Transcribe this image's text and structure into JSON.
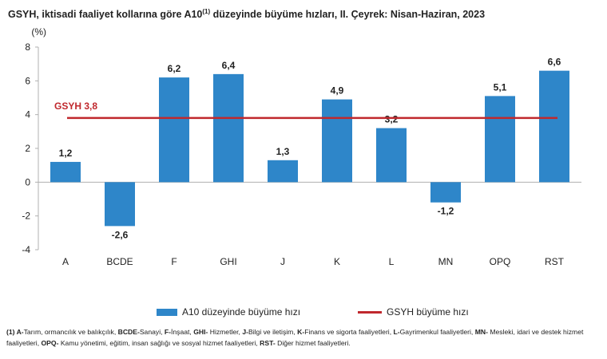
{
  "title": {
    "main": "GSYH, iktisadi faaliyet kollarına göre A10",
    "superscript": "(1)",
    "rest": " düzeyinde büyüme hızları, II. Çeyrek: Nisan-Haziran, 2023"
  },
  "legend": {
    "bar_label": "A10 düzeyinde büyüme hızı",
    "line_label": "GSYH büyüme hızı"
  },
  "footnote": {
    "segments": [
      {
        "text": "(1) A-",
        "bold": true
      },
      {
        "text": "Tarım, ormancılık ve balıkçılık, ",
        "bold": false
      },
      {
        "text": "BCDE-",
        "bold": true
      },
      {
        "text": "Sanayi, ",
        "bold": false
      },
      {
        "text": "F-",
        "bold": true
      },
      {
        "text": "İnşaat, ",
        "bold": false
      },
      {
        "text": "GHI-",
        "bold": true
      },
      {
        "text": " Hizmetler, ",
        "bold": false
      },
      {
        "text": "J-",
        "bold": true
      },
      {
        "text": "Bilgi ve iletişim, ",
        "bold": false
      },
      {
        "text": "K-",
        "bold": true
      },
      {
        "text": "Finans ve sigorta faaliyetleri, ",
        "bold": false
      },
      {
        "text": "L-",
        "bold": true
      },
      {
        "text": "Gayrimenkul faaliyetleri, ",
        "bold": false
      },
      {
        "text": "MN-",
        "bold": true
      },
      {
        "text": " Mesleki, idari ve destek hizmet faaliyetleri, ",
        "bold": false
      },
      {
        "text": "OPQ-",
        "bold": true
      },
      {
        "text": " Kamu yönetimi, eğitim, insan sağlığı ve sosyal hizmet faaliyetleri, ",
        "bold": false
      },
      {
        "text": "RST-",
        "bold": true
      },
      {
        "text": " Diğer hizmet faaliyetleri.",
        "bold": false
      }
    ]
  },
  "colors": {
    "bar": "#2e86c9",
    "reference_line": "#c0282d",
    "axis": "#b0b0b0"
  },
  "chart_data": {
    "type": "bar",
    "title": "GSYH, iktisadi faaliyet kollarına göre A10(1) düzeyinde büyüme hızları, II. Çeyrek: Nisan-Haziran, 2023",
    "ylabel": "(%)",
    "xlabel": "",
    "ylim": [
      -4,
      8
    ],
    "yticks": [
      -4,
      -2,
      0,
      2,
      4,
      6,
      8
    ],
    "grid": false,
    "legend_position": "bottom",
    "categories": [
      "A",
      "BCDE",
      "F",
      "GHI",
      "J",
      "K",
      "L",
      "MN",
      "OPQ",
      "RST"
    ],
    "series": [
      {
        "name": "A10 düzeyinde büyüme hızı",
        "values": [
          1.2,
          -2.6,
          6.2,
          6.4,
          1.3,
          4.9,
          3.2,
          -1.2,
          5.1,
          6.6
        ],
        "labels": [
          "1,2",
          "-2,6",
          "6,2",
          "6,4",
          "1,3",
          "4,9",
          "3,2",
          "-1,2",
          "5,1",
          "6,6"
        ]
      }
    ],
    "reference_line": {
      "name": "GSYH büyüme hızı",
      "value": 3.8,
      "label": "GSYH 3,8"
    }
  }
}
